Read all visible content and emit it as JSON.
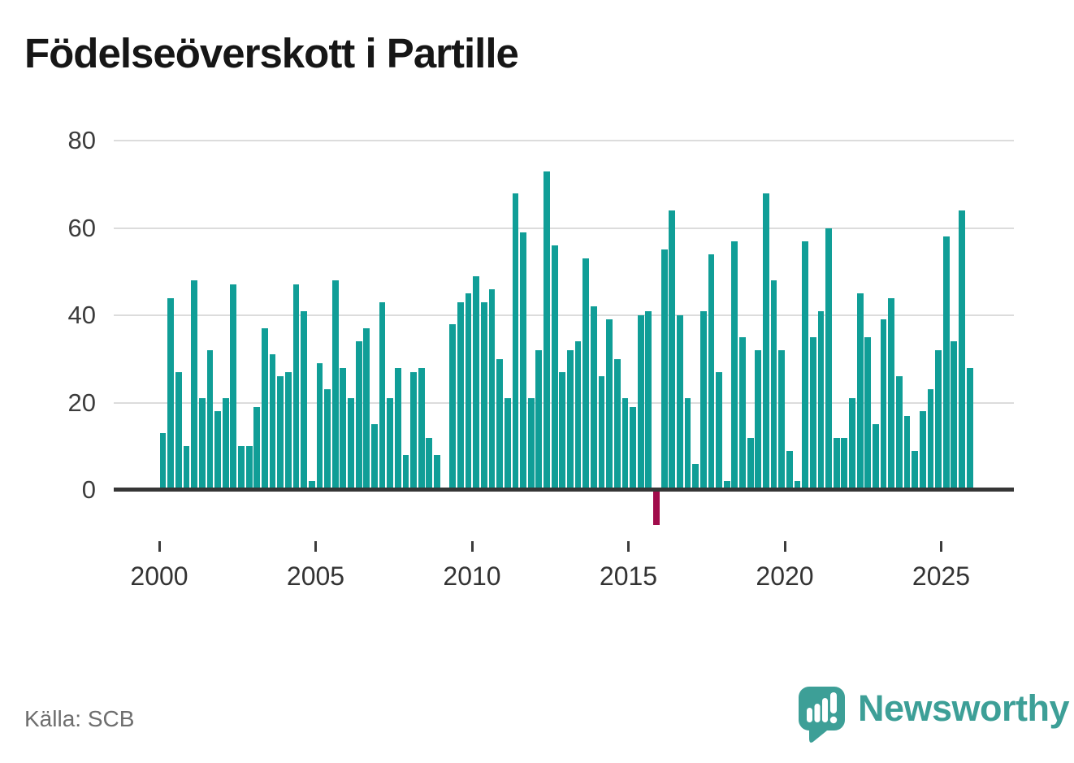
{
  "title": "Födelseöverskott i Partille",
  "source": "Källa: SCB",
  "brand": {
    "name": "Newsworthy"
  },
  "colors": {
    "bar": "#109e97",
    "negative_bar": "#a10c4b",
    "axis": "#363636",
    "grid": "#dcdcdc",
    "brand_teal": "#3d9f97",
    "title_text": "#161616",
    "tick_text": "#3c3c3c",
    "source_text": "#6e6e6e"
  },
  "chart_data": {
    "type": "bar",
    "title": "Födelseöverskott i Partille",
    "frequency": "quarterly",
    "x_start": "2000-Q1",
    "x_end": "2025-Q4",
    "x_tick_labels": [
      "2000",
      "2005",
      "2010",
      "2015",
      "2020",
      "2025"
    ],
    "y_ticks": [
      0,
      20,
      40,
      60,
      80
    ],
    "ylim": [
      -12,
      80
    ],
    "grid": "horizontal",
    "legend": "none",
    "annotations": {
      "negative_bar_quarter": "2015-Q4",
      "negative_bar_value": -8,
      "zero_bar_quarter": "2009-Q1"
    },
    "values": [
      13,
      44,
      27,
      10,
      48,
      21,
      32,
      18,
      21,
      47,
      10,
      10,
      19,
      37,
      31,
      26,
      27,
      47,
      41,
      2,
      29,
      23,
      48,
      28,
      21,
      34,
      37,
      15,
      43,
      21,
      28,
      8,
      27,
      28,
      12,
      8,
      0,
      38,
      43,
      45,
      49,
      43,
      46,
      30,
      21,
      68,
      59,
      21,
      32,
      73,
      56,
      27,
      32,
      34,
      53,
      42,
      26,
      39,
      30,
      21,
      19,
      40,
      41,
      -8,
      55,
      64,
      40,
      21,
      6,
      41,
      54,
      27,
      2,
      57,
      35,
      12,
      32,
      68,
      48,
      32,
      9,
      2,
      57,
      35,
      41,
      60,
      12,
      12,
      21,
      45,
      35,
      15,
      39,
      44,
      26,
      17,
      9,
      18,
      23,
      32,
      58,
      34,
      64,
      28
    ]
  }
}
